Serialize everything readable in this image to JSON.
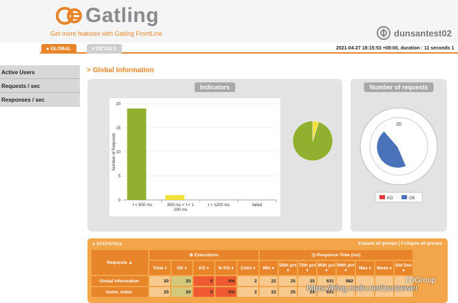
{
  "brand": {
    "name": "Gatling",
    "tagline": "Get more features with Gatling FrontLine"
  },
  "simulation": {
    "name": "dunsantest02"
  },
  "tabs": [
    {
      "label": "GLOBAL"
    },
    {
      "label": "DETAILS"
    }
  ],
  "run_info": "2021-04-27 18:15:53 +08:00, duration : 11 seconds 1",
  "sidebar": {
    "items": [
      {
        "label": "Active Users"
      },
      {
        "label": "Requests / sec"
      },
      {
        "label": "Responses / sec"
      }
    ]
  },
  "section_title": "Global Information",
  "panels": {
    "indicators": "Indicators",
    "number_of_requests": "Number of requests"
  },
  "chart_data": [
    {
      "type": "bar",
      "title": "Indicators",
      "ylabel": "Number of Requests",
      "ylim": [
        0,
        20
      ],
      "yticks": [
        "0",
        "5",
        "10",
        "15",
        "20"
      ],
      "categories": [
        "t < 800 ms",
        "800 ms < t < 1200 ms",
        "t > 1200 ms",
        "failed"
      ],
      "values": [
        19,
        1,
        0,
        0
      ],
      "colors": [
        "#92b030",
        "#f4e137",
        "#f39a3a",
        "#e53935"
      ]
    },
    {
      "type": "pie",
      "slices": [
        {
          "value": 19,
          "color": "#92b030"
        },
        {
          "value": 1,
          "color": "#f4e137"
        }
      ]
    },
    {
      "type": "pie",
      "title": "Number of requests",
      "total_label": "20",
      "legend": [
        {
          "name": "KO",
          "color": "#e53935"
        },
        {
          "name": "OK",
          "color": "#4a72b8"
        }
      ],
      "slices": [
        {
          "name": "OK",
          "value": 20
        },
        {
          "name": "KO",
          "value": 0
        }
      ]
    }
  ],
  "stats": {
    "title": "STATISTICS",
    "controls": "Expand all groups | Collapse all groups",
    "group_executions": "Executions",
    "group_response_time": "Response Time (ms)",
    "headers": [
      "Requests ▲",
      "Total ♦",
      "OK ♦",
      "KO ♦",
      "% KO ♦",
      "Cnt/s ♦",
      "Min ♦",
      "50th pct ♦",
      "75th pct ♦",
      "95th pct ♦",
      "99th pct ♦",
      "Max ♦",
      "Mean ♦",
      "Std Dev ♦"
    ],
    "rows": [
      {
        "name": "Global Information",
        "cells": [
          "20",
          "20",
          "0",
          "0%",
          "2",
          "22",
          "25",
          "25",
          "631",
          "982",
          "",
          "",
          ""
        ]
      },
      {
        "name": "home_index",
        "cells": [
          "20",
          "20",
          "0",
          "0%",
          "2",
          "22",
          "25",
          "25",
          "631",
          "",
          "",
          "",
          ""
        ]
      }
    ]
  },
  "watermark": {
    "url": "https://blog.csdn.net/zuozewei",
    "group": "7DGroup"
  }
}
